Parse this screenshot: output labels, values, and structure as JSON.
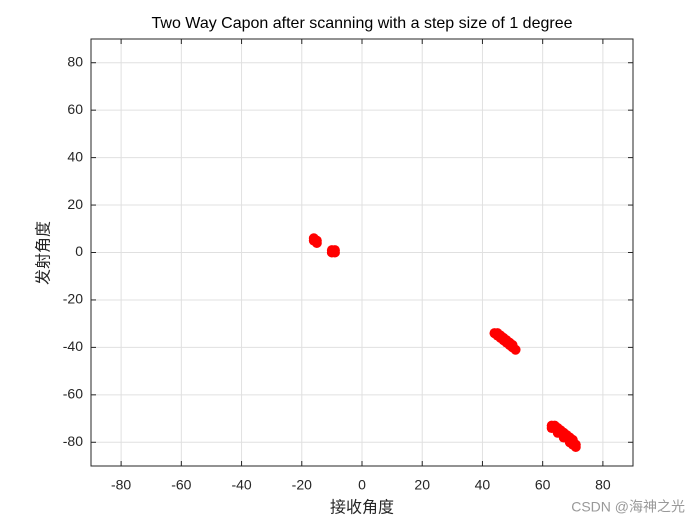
{
  "chart_data": {
    "type": "scatter",
    "title": "Two Way Capon after scanning with a step size of 1 degree",
    "xlabel": "接收角度",
    "ylabel": "发射角度",
    "watermark": "CSDN @海神之光",
    "color": "#ff0000",
    "x": [
      -16,
      -15,
      -15,
      -16,
      -10,
      -9,
      -10,
      -9,
      44,
      45,
      45,
      46,
      46,
      47,
      47,
      48,
      48,
      49,
      49,
      50,
      50,
      51,
      63,
      64,
      64,
      65,
      65,
      66,
      66,
      67,
      67,
      68,
      68,
      69,
      69,
      70,
      70,
      71,
      71,
      70,
      65,
      67,
      69,
      63
    ],
    "y": [
      5,
      5,
      4,
      6,
      0,
      0,
      1,
      1,
      -34,
      -34,
      -35,
      -36,
      -35,
      -37,
      -36,
      -38,
      -37,
      -39,
      -38,
      -40,
      -39,
      -41,
      -73,
      -73,
      -74,
      -75,
      -74,
      -76,
      -75,
      -77,
      -76,
      -78,
      -77,
      -79,
      -78,
      -80,
      -79,
      -81,
      -82,
      -81,
      -76,
      -78,
      -80,
      -74
    ],
    "xlim": [
      -90,
      90
    ],
    "ylim": [
      -90,
      90
    ],
    "xticks": [
      -80,
      -60,
      -40,
      -20,
      0,
      20,
      40,
      60,
      80
    ],
    "yticks": [
      -80,
      -60,
      -40,
      -20,
      0,
      20,
      40,
      60,
      80
    ],
    "grid": true
  }
}
